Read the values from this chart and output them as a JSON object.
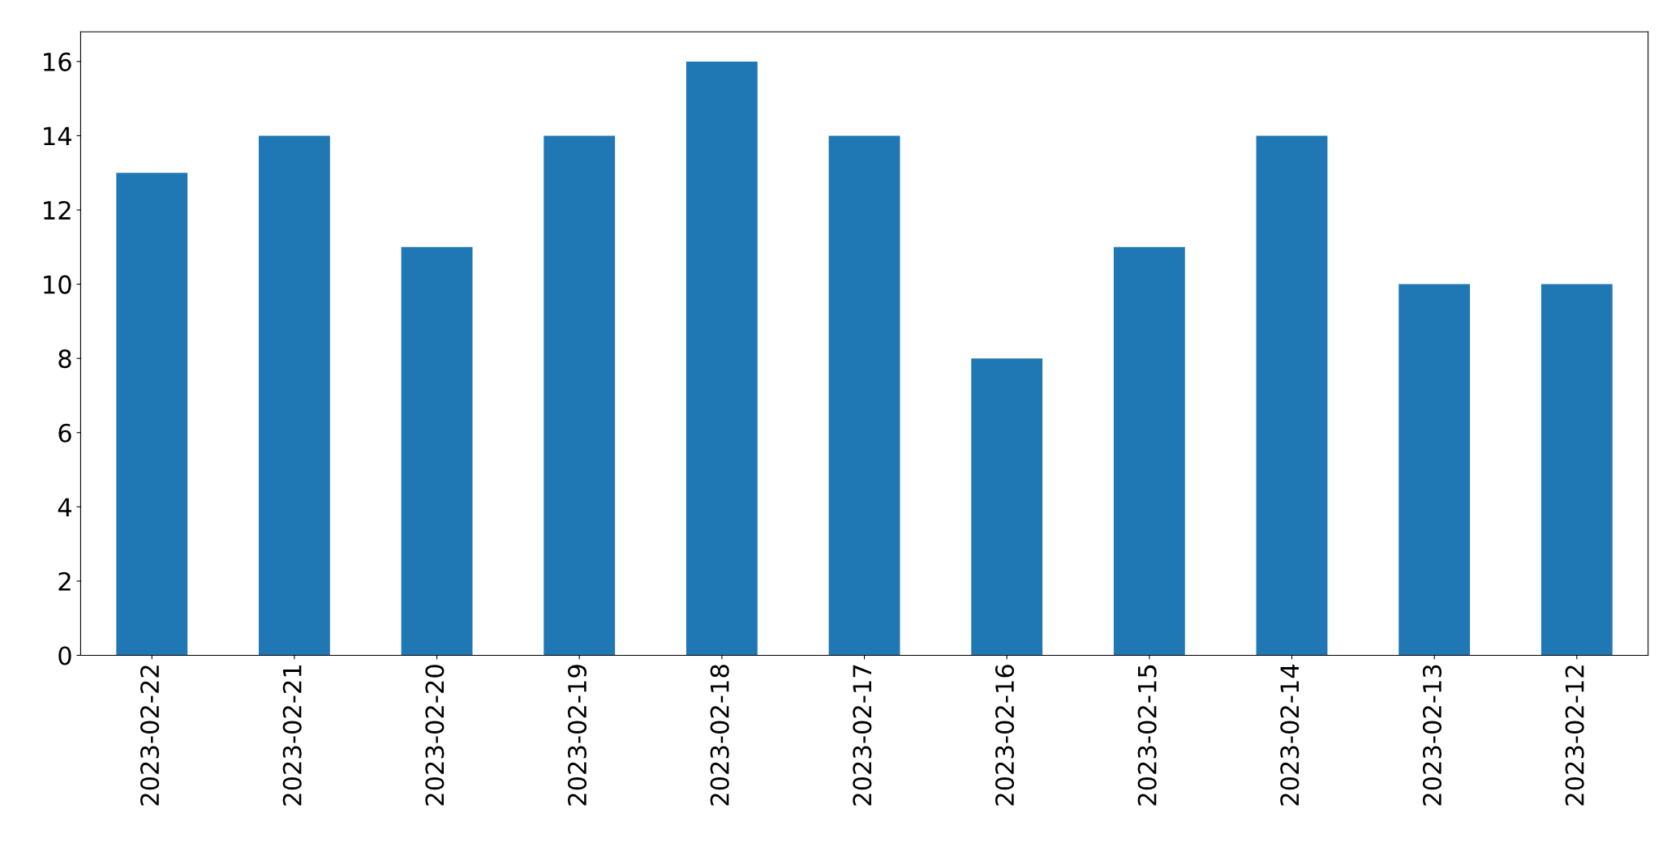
{
  "chart_data": {
    "type": "bar",
    "categories": [
      "2023-02-22",
      "2023-02-21",
      "2023-02-20",
      "2023-02-19",
      "2023-02-18",
      "2023-02-17",
      "2023-02-16",
      "2023-02-15",
      "2023-02-14",
      "2023-02-13",
      "2023-02-12"
    ],
    "values": [
      13,
      14,
      11,
      14,
      16,
      14,
      8,
      11,
      14,
      10,
      10
    ],
    "color": "#1f77b4",
    "ylim": [
      0,
      16.8
    ],
    "yticks": [
      0,
      2,
      4,
      6,
      8,
      10,
      12,
      14,
      16
    ],
    "grid": false,
    "legend": false
  }
}
